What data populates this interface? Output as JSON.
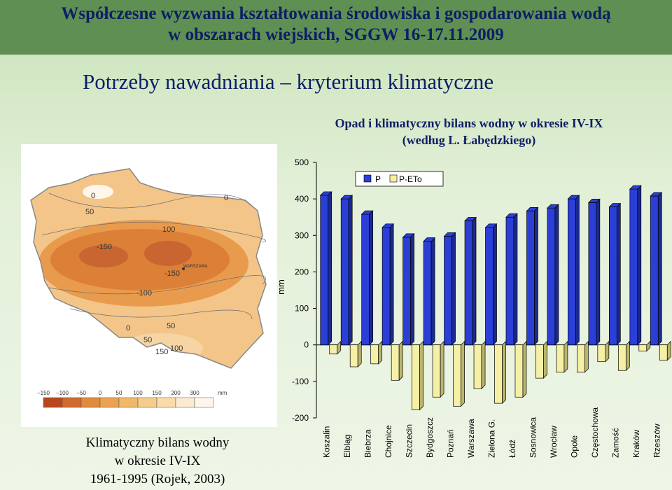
{
  "header": {
    "line1": "Współczesne wyzwania kształtowania środowiska i gospodarowania wodą",
    "line2": "w obszarach wiejskich, SGGW 16-17.11.2009"
  },
  "section_title": "Potrzeby nawadniania – kryterium klimatyczne",
  "chart_title": {
    "line1": "Opad i klimatyczny bilans wodny w okresie IV-IX",
    "line2": "(według L. Łabędzkiego)"
  },
  "map": {
    "contour_labels": [
      "0",
      "50",
      "100",
      "-150",
      "-150",
      "-100",
      "0",
      "50",
      "50",
      "100",
      "150",
      "0"
    ],
    "city_label": "WARSZAWA",
    "legend_ticks": [
      "−150",
      "−100",
      "−50",
      "0",
      "50",
      "100",
      "150",
      "200",
      "300",
      "mm"
    ],
    "legend_colors": [
      "#b8471e",
      "#d06a2e",
      "#e08a3e",
      "#eba352",
      "#f1b86a",
      "#f5cc8c",
      "#f9dcaa",
      "#fcead0",
      "#fef6ea"
    ],
    "caption": {
      "line1": "Klimatyczny bilans wodny",
      "line2": "w okresie IV-IX",
      "line3": "1961-1995 (Rojek, 2003)"
    }
  },
  "chart_data": {
    "type": "bar",
    "title": "Opad i klimatyczny bilans wodny w okresie IV-IX (według L. Łabędzkiego)",
    "ylabel": "mm",
    "ylim": [
      -200,
      500
    ],
    "yticks": [
      "500",
      "400",
      "300",
      "200",
      "100",
      "0",
      "-100",
      "-200"
    ],
    "categories": [
      "Koszalin",
      "Elbląg",
      "Biebrza",
      "Chojnice",
      "Szczecin",
      "Bydgoszcz",
      "Poznań",
      "Warszawa",
      "Zielona G.",
      "Łódź",
      "Sosnowica",
      "Wrocław",
      "Opole",
      "Częstochowa",
      "Zamość",
      "Kraków",
      "Rzeszów"
    ],
    "series": [
      {
        "name": "P",
        "color": "#2b3fd6",
        "values": [
          410,
          400,
          358,
          322,
          295,
          284,
          298,
          340,
          322,
          350,
          367,
          375,
          400,
          390,
          378,
          427,
          408
        ]
      },
      {
        "name": "P-ETo",
        "color": "#f5f0a6",
        "values": [
          -25,
          -60,
          -52,
          -97,
          -178,
          -143,
          -168,
          -120,
          -160,
          -143,
          -91,
          -75,
          -75,
          -46,
          -70,
          -17,
          -42
        ]
      }
    ],
    "legend": "top-center",
    "grid": false
  }
}
